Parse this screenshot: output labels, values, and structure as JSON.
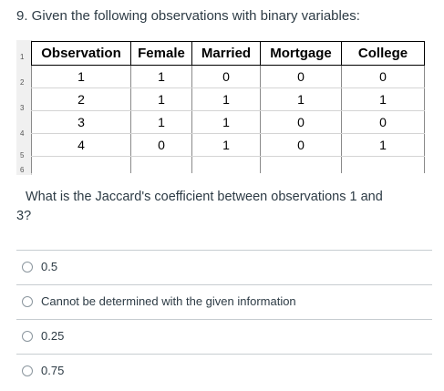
{
  "question": {
    "title": "9. Given the following observations with binary variables:",
    "text_line1": "What is the  Jaccard's coefficient between observations 1 and",
    "text_line2": "3?"
  },
  "table": {
    "row_numbers": [
      "1",
      "2",
      "3",
      "4",
      "5",
      "6"
    ],
    "headers": [
      "Observation",
      "Female",
      "Married",
      "Mortgage",
      "College"
    ],
    "rows": [
      [
        "1",
        "1",
        "0",
        "0",
        "0"
      ],
      [
        "2",
        "1",
        "1",
        "1",
        "1"
      ],
      [
        "3",
        "1",
        "1",
        "0",
        "0"
      ],
      [
        "4",
        "0",
        "1",
        "0",
        "1"
      ]
    ]
  },
  "answers": [
    {
      "label": "0.5"
    },
    {
      "label": "Cannot be determined with the given information"
    },
    {
      "label": "0.25"
    },
    {
      "label": "0.75"
    }
  ]
}
